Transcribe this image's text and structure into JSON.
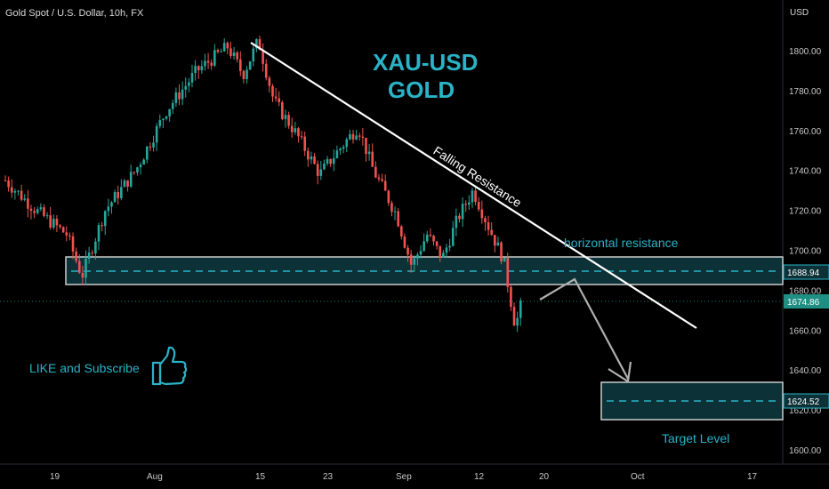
{
  "header": {
    "symbol_title": "Gold Spot / U.S. Dollar, 10h, FX",
    "currency": "USD"
  },
  "annotations": {
    "title_line1": "XAU-USD",
    "title_line2": "GOLD",
    "falling_resistance": "Falling Resistance",
    "horizontal_resistance": "horizontal resistance",
    "target_level": "Target Level",
    "like_subscribe": "LIKE and Subscribe",
    "thumbs_up_icon": "thumbs-up-icon"
  },
  "price_badges": {
    "resistance": "1688.94",
    "last_price": "1674.86",
    "target": "1624.52"
  },
  "colors": {
    "up": "#26a69a",
    "down": "#ef5350",
    "accent": "#2ab3c6",
    "zone_fill": "#0c3238",
    "line": "#ffffff",
    "arrow": "#b0b0b0"
  },
  "chart_data": {
    "type": "candlestick",
    "title": "Gold Spot / U.S. Dollar, 10h, FX",
    "ylabel": "USD",
    "ylim": [
      1590,
      1820
    ],
    "y_ticks": [
      1800,
      1780,
      1760,
      1740,
      1720,
      1700,
      1680,
      1660,
      1640,
      1620,
      1600
    ],
    "x_tick_labels": [
      "19",
      "Aug",
      "15",
      "23",
      "Sep",
      "12",
      "20",
      "Oct",
      "17"
    ],
    "last_price": 1674.86,
    "resistance_zone": [
      1683.5,
      1697
    ],
    "resistance_price": 1688.94,
    "target_zone": [
      1615.5,
      1634
    ],
    "target_price": 1624.52,
    "waypoints": [
      {
        "day": 0,
        "price": 1735
      },
      {
        "day": 4,
        "price": 1720
      },
      {
        "day": 8,
        "price": 1708
      },
      {
        "day": 10,
        "price": 1687
      },
      {
        "day": 13,
        "price": 1720
      },
      {
        "day": 17,
        "price": 1740
      },
      {
        "day": 21,
        "price": 1770
      },
      {
        "day": 25,
        "price": 1790
      },
      {
        "day": 29,
        "price": 1802
      },
      {
        "day": 31,
        "price": 1788
      },
      {
        "day": 33,
        "price": 1805
      },
      {
        "day": 35,
        "price": 1775
      },
      {
        "day": 38,
        "price": 1758
      },
      {
        "day": 41,
        "price": 1738
      },
      {
        "day": 43,
        "price": 1748
      },
      {
        "day": 46,
        "price": 1762
      },
      {
        "day": 48,
        "price": 1740
      },
      {
        "day": 51,
        "price": 1718
      },
      {
        "day": 53,
        "price": 1692
      },
      {
        "day": 55,
        "price": 1708
      },
      {
        "day": 57,
        "price": 1696
      },
      {
        "day": 59,
        "price": 1716
      },
      {
        "day": 61,
        "price": 1730
      },
      {
        "day": 63,
        "price": 1712
      },
      {
        "day": 65,
        "price": 1695
      },
      {
        "day": 66.5,
        "price": 1662
      },
      {
        "day": 67.5,
        "price": 1675
      }
    ],
    "falling_resistance_line": [
      {
        "day": 32.2,
        "price": 1804
      },
      {
        "day": 89.5,
        "price": 1662
      }
    ],
    "projection_path": [
      {
        "day": 70.3,
        "price": 1675
      },
      {
        "day": 75.2,
        "price": 1686
      },
      {
        "day": 81.2,
        "price": 1634
      }
    ]
  }
}
